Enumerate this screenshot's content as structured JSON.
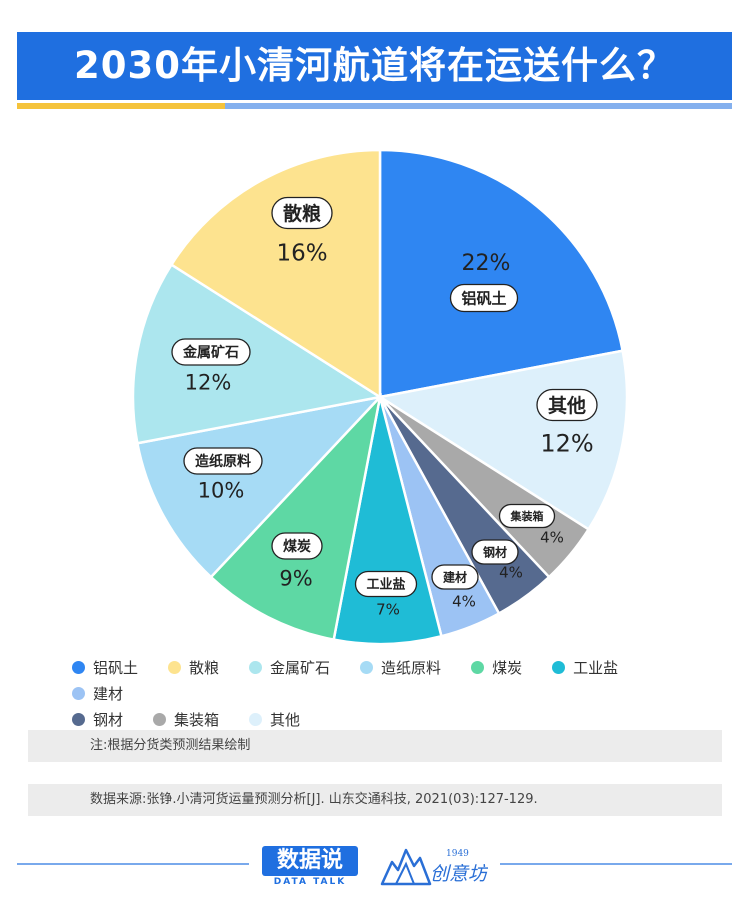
{
  "title": "2030年小清河航道将在运送什么？",
  "chart_data": {
    "type": "pie",
    "slices": [
      {
        "label": "铝矾土",
        "value": 22,
        "pct_label": "22%",
        "color": "#2f86f2"
      },
      {
        "label": "其他",
        "value": 12,
        "pct_label": "12%",
        "color": "#ddf0fb"
      },
      {
        "label": "集装箱",
        "value": 4,
        "pct_label": "4%",
        "color": "#a9a9a9"
      },
      {
        "label": "钢材",
        "value": 4,
        "pct_label": "4%",
        "color": "#566a8f"
      },
      {
        "label": "建材",
        "value": 4,
        "pct_label": "4%",
        "color": "#9cc3f4"
      },
      {
        "label": "工业盐",
        "value": 7,
        "pct_label": "7%",
        "color": "#1fbcd6"
      },
      {
        "label": "煤炭",
        "value": 9,
        "pct_label": "9%",
        "color": "#5ed8a4"
      },
      {
        "label": "造纸原料",
        "value": 10,
        "pct_label": "10%",
        "color": "#a6dbf5"
      },
      {
        "label": "金属矿石",
        "value": 12,
        "pct_label": "12%",
        "color": "#ace6ee"
      },
      {
        "label": "散粮",
        "value": 16,
        "pct_label": "16%",
        "color": "#fde38f"
      }
    ],
    "legend": [
      [
        "铝矾土",
        "散粮",
        "金属矿石",
        "造纸原料",
        "煤炭",
        "工业盐",
        "建材"
      ],
      [
        "钢材",
        "集装箱",
        "其他"
      ]
    ],
    "legend_placement": "bottom"
  },
  "notes": {
    "note": "注:根据分货类预测结果绘制",
    "source": "数据来源:张铮.小清河货运量预测分析[J]. 山东交通科技, 2021(03):127-129."
  },
  "logos": {
    "data_talk_main": "数据说",
    "data_talk_sub": "DATA TALK",
    "chuangyifang_year": "1949",
    "chuangyifang_name": "创意坊"
  }
}
